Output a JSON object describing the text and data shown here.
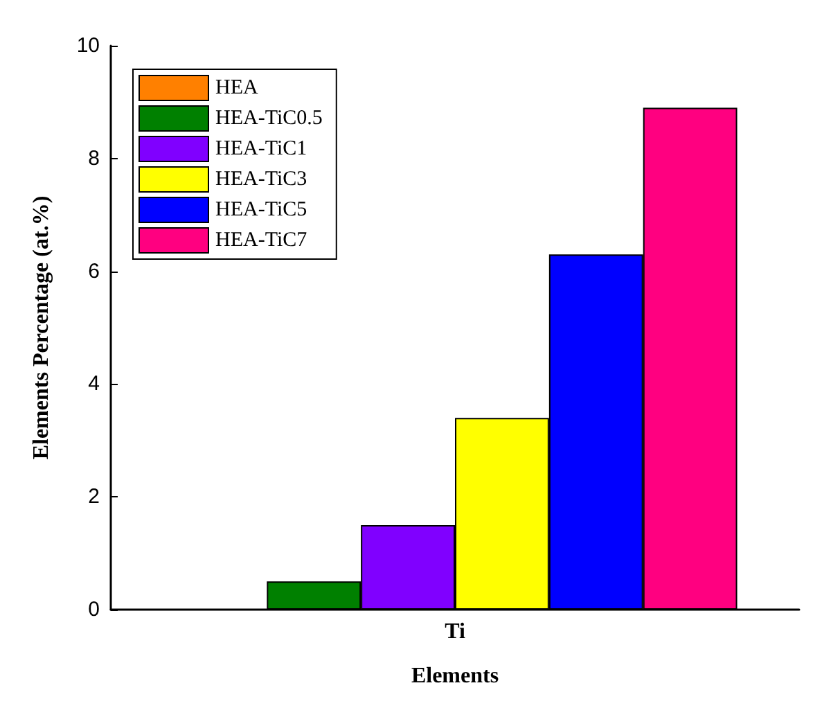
{
  "chart_data": {
    "type": "bar",
    "xlabel": "Elements",
    "ylabel": "Elements Percentage (at.%)",
    "categories": [
      "Ti"
    ],
    "series": [
      {
        "name": "HEA",
        "color": "#ff8000",
        "values": [
          null
        ]
      },
      {
        "name": "HEA-TiC0.5",
        "color": "#008000",
        "values": [
          0.5
        ]
      },
      {
        "name": "HEA-TiC1",
        "color": "#8000ff",
        "values": [
          1.5
        ]
      },
      {
        "name": "HEA-TiC3",
        "color": "#ffff00",
        "values": [
          3.4
        ]
      },
      {
        "name": "HEA-TiC5",
        "color": "#0000ff",
        "values": [
          6.3
        ]
      },
      {
        "name": "HEA-TiC7",
        "color": "#ff0080",
        "values": [
          8.9
        ]
      }
    ],
    "ylim": [
      0,
      10
    ],
    "yticks": [
      0,
      2,
      4,
      6,
      8,
      10
    ],
    "legend": "top left",
    "grid": false
  }
}
